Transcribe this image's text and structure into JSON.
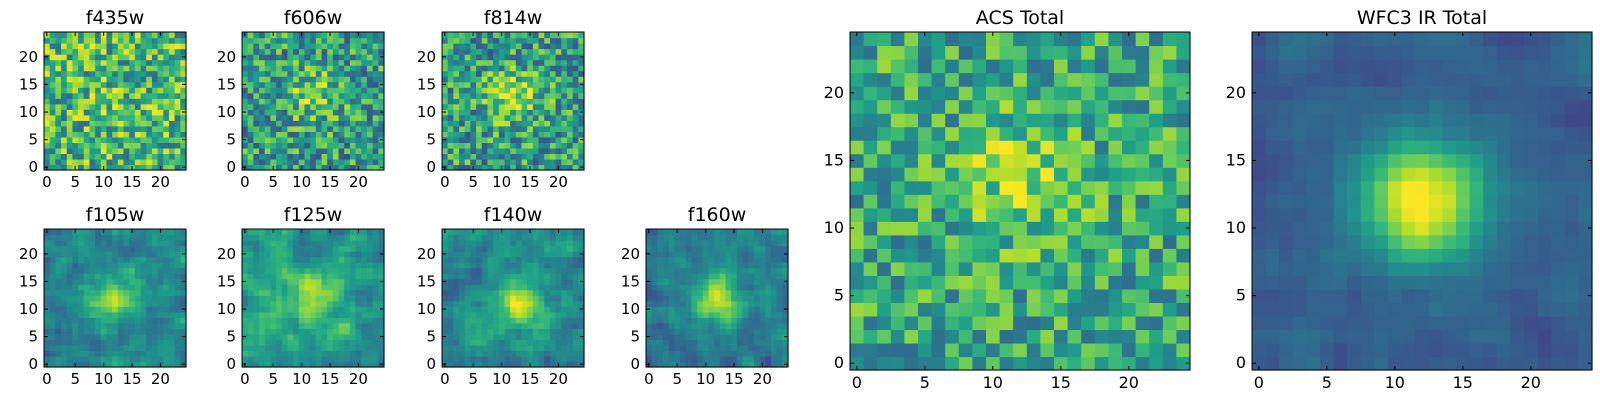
{
  "chart_data": {
    "type": "heatmap",
    "colormap": "viridis",
    "grid_size": 25,
    "panels": [
      {
        "title": "f435w",
        "xlim": [
          0,
          24
        ],
        "ylim": [
          0,
          24
        ],
        "xticks": [
          "0",
          "5",
          "10",
          "15",
          "20"
        ],
        "yticks": [
          "0",
          "5",
          "10",
          "15",
          "20"
        ],
        "center": [
          12,
          12
        ],
        "peak": 0.05,
        "base": 0.66,
        "noise": 0.32,
        "smooth": 0,
        "seed": 11
      },
      {
        "title": "f606w",
        "xlim": [
          0,
          24
        ],
        "ylim": [
          0,
          24
        ],
        "xticks": [
          "0",
          "5",
          "10",
          "15",
          "20"
        ],
        "yticks": [
          "0",
          "5",
          "10",
          "15",
          "20"
        ],
        "center": [
          12,
          13
        ],
        "peak": 0.25,
        "base": 0.55,
        "noise": 0.3,
        "smooth": 0,
        "seed": 23
      },
      {
        "title": "f814w",
        "xlim": [
          0,
          24
        ],
        "ylim": [
          0,
          24
        ],
        "xticks": [
          "0",
          "5",
          "10",
          "15",
          "20"
        ],
        "yticks": [
          "0",
          "5",
          "10",
          "15",
          "20"
        ],
        "center": [
          12,
          13
        ],
        "peak": 0.35,
        "base": 0.55,
        "noise": 0.3,
        "smooth": 0,
        "seed": 37
      },
      {
        "title": "f105w",
        "xlim": [
          0,
          24
        ],
        "ylim": [
          0,
          24
        ],
        "xticks": [
          "0",
          "5",
          "10",
          "15",
          "20"
        ],
        "yticks": [
          "0",
          "5",
          "10",
          "15",
          "20"
        ],
        "center": [
          12,
          12
        ],
        "peak": 0.4,
        "base": 0.45,
        "noise": 0.22,
        "smooth": 1,
        "seed": 41
      },
      {
        "title": "f125w",
        "xlim": [
          0,
          24
        ],
        "ylim": [
          0,
          24
        ],
        "xticks": [
          "0",
          "5",
          "10",
          "15",
          "20"
        ],
        "yticks": [
          "0",
          "5",
          "10",
          "15",
          "20"
        ],
        "center": [
          12,
          12
        ],
        "peak": 0.3,
        "base": 0.55,
        "noise": 0.22,
        "smooth": 1,
        "seed": 53
      },
      {
        "title": "f140w",
        "xlim": [
          0,
          24
        ],
        "ylim": [
          0,
          24
        ],
        "xticks": [
          "0",
          "5",
          "10",
          "15",
          "20"
        ],
        "yticks": [
          "0",
          "5",
          "10",
          "15",
          "20"
        ],
        "center": [
          13,
          11
        ],
        "peak": 0.4,
        "base": 0.48,
        "noise": 0.22,
        "smooth": 1,
        "seed": 67
      },
      {
        "title": "f160w",
        "xlim": [
          0,
          24
        ],
        "ylim": [
          0,
          24
        ],
        "xticks": [
          "0",
          "5",
          "10",
          "15",
          "20"
        ],
        "yticks": [
          "0",
          "5",
          "10",
          "15",
          "20"
        ],
        "center": [
          12,
          12
        ],
        "peak": 0.5,
        "base": 0.42,
        "noise": 0.2,
        "smooth": 1,
        "seed": 79
      },
      {
        "title": "ACS Total",
        "xlim": [
          0,
          24
        ],
        "ylim": [
          0,
          24
        ],
        "xticks": [
          "0",
          "5",
          "10",
          "15",
          "20"
        ],
        "yticks": [
          "0",
          "5",
          "10",
          "15",
          "20"
        ],
        "center": [
          12,
          14
        ],
        "peak": 0.25,
        "base": 0.6,
        "noise": 0.25,
        "smooth": 0,
        "seed": 97
      },
      {
        "title": "WFC3 IR Total",
        "xlim": [
          0,
          24
        ],
        "ylim": [
          0,
          24
        ],
        "xticks": [
          "0",
          "5",
          "10",
          "15",
          "20"
        ],
        "yticks": [
          "0",
          "5",
          "10",
          "15",
          "20"
        ],
        "center": [
          12,
          12
        ],
        "peak": 0.72,
        "base": 0.3,
        "noise": 0.1,
        "smooth": 1,
        "seed": 113
      }
    ]
  }
}
